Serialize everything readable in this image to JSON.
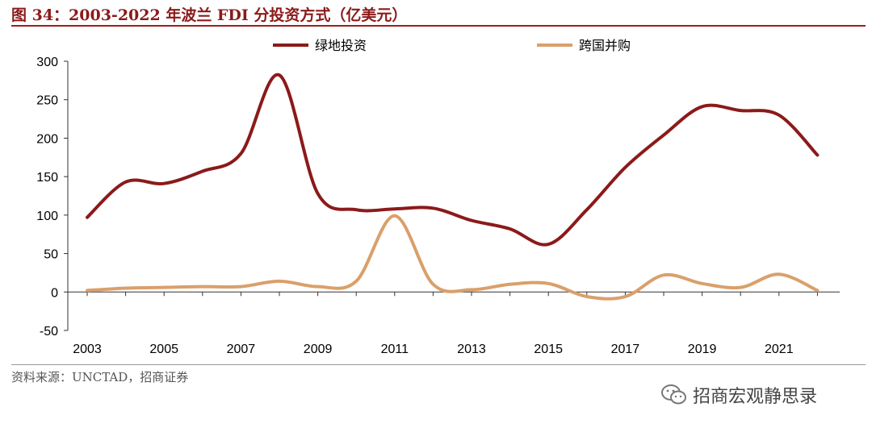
{
  "header": {
    "title": "图 34：2003-2022 年波兰 FDI 分投资方式（亿美元）"
  },
  "source": {
    "text": "资料来源：UNCTAD，招商证券"
  },
  "watermark": {
    "text": "招商宏观静思录",
    "icon": "wechat-icon"
  },
  "colors": {
    "accent": "#8B1A1A",
    "greenfield": "#8B1A1A",
    "mna": "#D9A06B"
  },
  "chart_data": {
    "type": "line",
    "title": "",
    "xlabel": "",
    "ylabel": "",
    "ylim": [
      -50,
      300
    ],
    "yticks": [
      -50,
      0,
      50,
      100,
      150,
      200,
      250,
      300
    ],
    "x": [
      2003,
      2004,
      2005,
      2006,
      2007,
      2008,
      2009,
      2010,
      2011,
      2012,
      2013,
      2014,
      2015,
      2016,
      2017,
      2018,
      2019,
      2020,
      2021,
      2022
    ],
    "xtick_labels": [
      "2003",
      "2005",
      "2007",
      "2009",
      "2011",
      "2013",
      "2015",
      "2017",
      "2019",
      "2021"
    ],
    "legend_position": "top",
    "grid": false,
    "series": [
      {
        "name": "绿地投资",
        "color": "#8B1A1A",
        "values": [
          97,
          143,
          141,
          157,
          180,
          282,
          128,
          107,
          108,
          109,
          93,
          82,
          62,
          107,
          162,
          204,
          241,
          236,
          230,
          178
        ]
      },
      {
        "name": "跨国并购",
        "color": "#D9A06B",
        "values": [
          2,
          5,
          6,
          7,
          7,
          14,
          7,
          14,
          99,
          10,
          3,
          10,
          11,
          -6,
          -6,
          22,
          11,
          6,
          23,
          2
        ]
      }
    ]
  }
}
